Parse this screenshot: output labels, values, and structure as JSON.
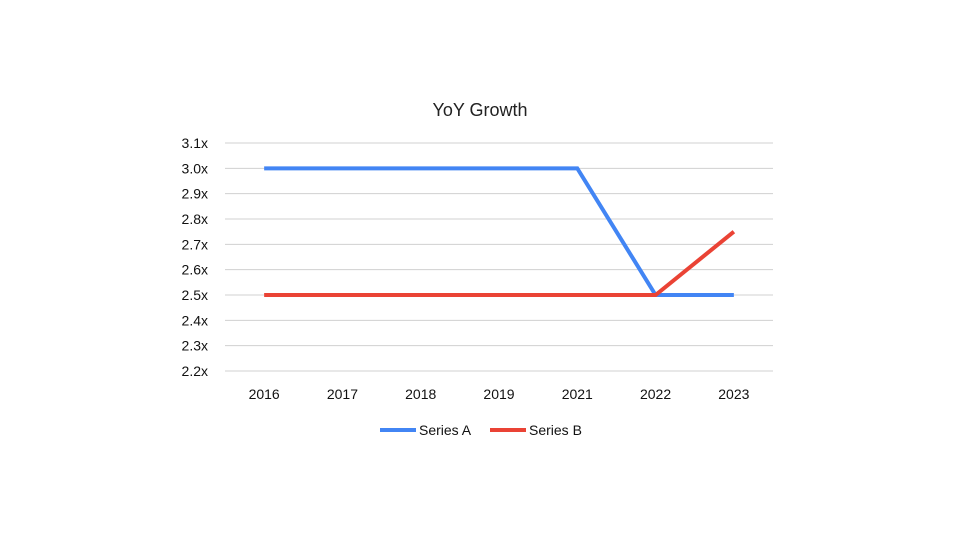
{
  "chart_data": {
    "type": "line",
    "title": "YoY Growth",
    "categories": [
      "2016",
      "2017",
      "2018",
      "2019",
      "2021",
      "2022",
      "2023"
    ],
    "y_tick_labels": [
      "3.1x",
      "3.0x",
      "2.9x",
      "2.8x",
      "2.7x",
      "2.6x",
      "2.5x",
      "2.4x",
      "2.3x",
      "2.2x"
    ],
    "ylim": [
      2.2,
      3.1
    ],
    "grid": true,
    "legend_position": "bottom",
    "series": [
      {
        "name": "Series A",
        "color": "#4285F4",
        "values": [
          3.0,
          3.0,
          3.0,
          3.0,
          3.0,
          2.5,
          2.5
        ]
      },
      {
        "name": "Series B",
        "color": "#EA4335",
        "values": [
          2.5,
          2.5,
          2.5,
          2.5,
          2.5,
          2.5,
          2.75
        ]
      }
    ]
  }
}
